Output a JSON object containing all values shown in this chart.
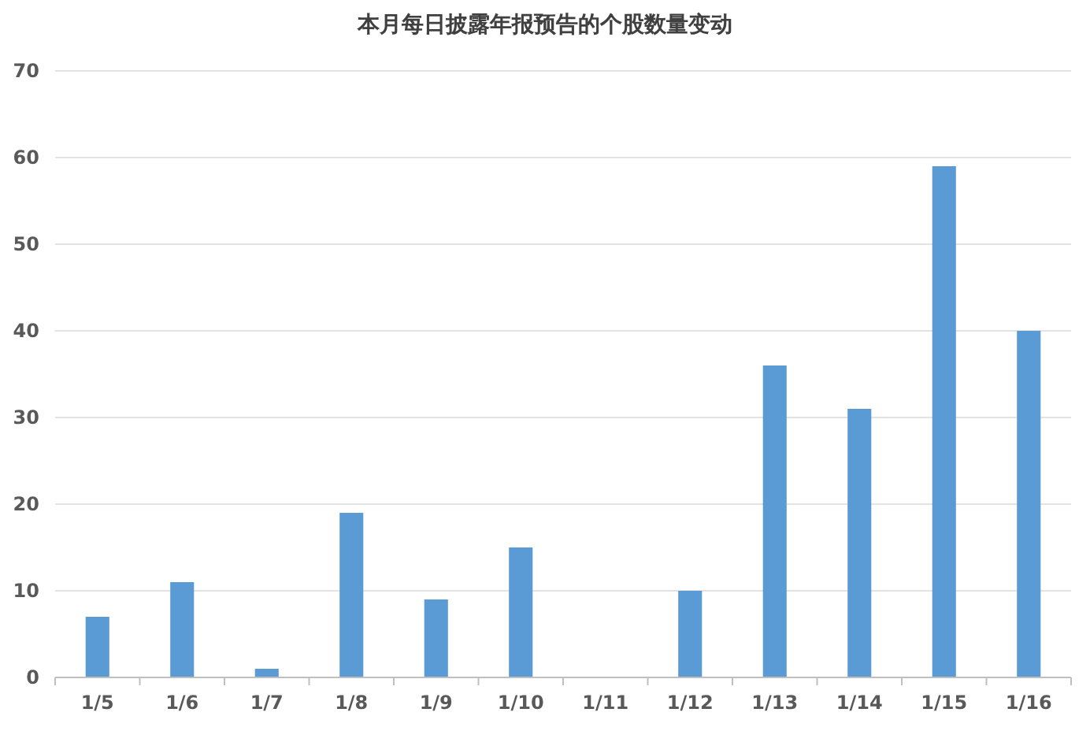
{
  "chart_data": {
    "type": "bar",
    "title": "本月每日披露年报预告的个股数量变动",
    "categories": [
      "1/5",
      "1/6",
      "1/7",
      "1/8",
      "1/9",
      "1/10",
      "1/11",
      "1/12",
      "1/13",
      "1/14",
      "1/15",
      "1/16"
    ],
    "values": [
      7,
      11,
      1,
      19,
      9,
      15,
      0,
      10,
      36,
      31,
      59,
      40
    ],
    "color": "#5b9bd5",
    "ylim": [
      0,
      70
    ],
    "yticks": [
      0,
      10,
      20,
      30,
      40,
      50,
      60,
      70
    ],
    "grid": "y"
  }
}
